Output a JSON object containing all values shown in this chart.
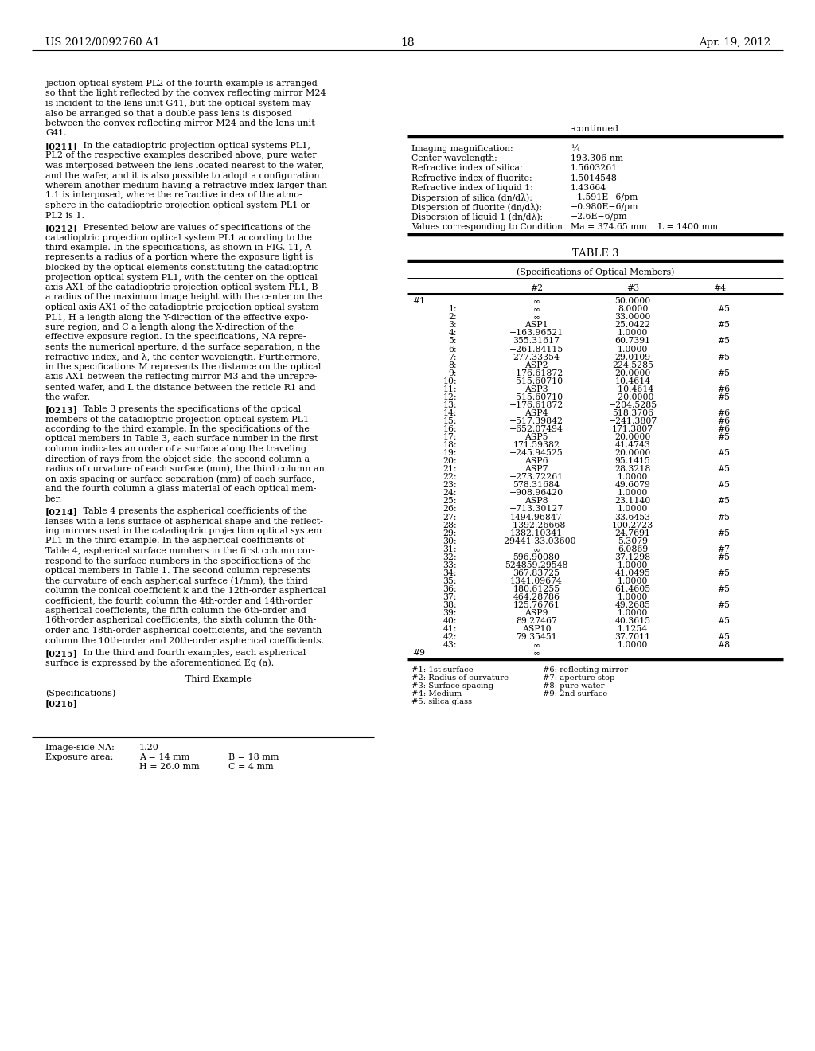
{
  "page_number": "18",
  "patent_number": "US 2012/0092760 A1",
  "date": "Apr. 19, 2012",
  "continued_rows": [
    [
      "Imaging magnification:",
      "¼"
    ],
    [
      "Center wavelength:",
      "193.306 nm"
    ],
    [
      "Refractive index of silica:",
      "1.5603261"
    ],
    [
      "Refractive index of fluorite:",
      "1.5014548"
    ],
    [
      "Refractive index of liquid 1:",
      "1.43664"
    ],
    [
      "Dispersion of silica (dn/dλ):",
      "−1.591E−6/pm"
    ],
    [
      "Dispersion of fluorite (dn/dλ):",
      "−0.980E−6/pm"
    ],
    [
      "Dispersion of liquid 1 (dn/dλ):",
      "−2.6E−6/pm"
    ],
    [
      "Values corresponding to Condition",
      "Ma = 374.65 mm    L = 1400 mm"
    ]
  ],
  "table3_rows": [
    [
      "#1",
      "∞",
      "50.0000",
      ""
    ],
    [
      "1:",
      "∞",
      "8.0000",
      "#5"
    ],
    [
      "2:",
      "∞",
      "33.0000",
      ""
    ],
    [
      "3:",
      "ASP1",
      "25.0422",
      "#5"
    ],
    [
      "4:",
      "−163.96521",
      "1.0000",
      ""
    ],
    [
      "5:",
      "355.31617",
      "60.7391",
      "#5"
    ],
    [
      "6:",
      "−261.84115",
      "1.0000",
      ""
    ],
    [
      "7:",
      "277.33354",
      "29.0109",
      "#5"
    ],
    [
      "8:",
      "ASP2",
      "224.5285",
      ""
    ],
    [
      "9:",
      "−176.61872",
      "20.0000",
      "#5"
    ],
    [
      "10:",
      "−515.60710",
      "10.4614",
      ""
    ],
    [
      "11:",
      "ASP3",
      "−10.4614",
      "#6"
    ],
    [
      "12:",
      "−515.60710",
      "−20.0000",
      "#5"
    ],
    [
      "13:",
      "−176.61872",
      "−204.5285",
      ""
    ],
    [
      "14:",
      "ASP4",
      "518.3706",
      "#6"
    ],
    [
      "15:",
      "−517.39842",
      "−241.3807",
      "#6"
    ],
    [
      "16:",
      "−652.07494",
      "171.3807",
      "#6"
    ],
    [
      "17:",
      "ASP5",
      "20.0000",
      "#5"
    ],
    [
      "18:",
      "171.59382",
      "41.4743",
      ""
    ],
    [
      "19:",
      "−245.94525",
      "20.0000",
      "#5"
    ],
    [
      "20:",
      "ASP6",
      "95.1415",
      ""
    ],
    [
      "21:",
      "ASP7",
      "28.3218",
      "#5"
    ],
    [
      "22:",
      "−273.72261",
      "1.0000",
      ""
    ],
    [
      "23:",
      "578.31684",
      "49.6079",
      "#5"
    ],
    [
      "24:",
      "−908.96420",
      "1.0000",
      ""
    ],
    [
      "25:",
      "ASP8",
      "23.1140",
      "#5"
    ],
    [
      "26:",
      "−713.30127",
      "1.0000",
      ""
    ],
    [
      "27:",
      "1494.96847",
      "33.6453",
      "#5"
    ],
    [
      "28:",
      "−1392.26668",
      "100.2723",
      ""
    ],
    [
      "29:",
      "1382.10341",
      "24.7691",
      "#5"
    ],
    [
      "30:",
      "−29441 33.03600",
      "5.3079",
      ""
    ],
    [
      "31:",
      "∞",
      "6.0869",
      "#7"
    ],
    [
      "32:",
      "596.90080",
      "37.1298",
      "#5"
    ],
    [
      "33:",
      "524859.29548",
      "1.0000",
      ""
    ],
    [
      "34:",
      "367.83725",
      "41.0495",
      "#5"
    ],
    [
      "35:",
      "1341.09674",
      "1.0000",
      ""
    ],
    [
      "36:",
      "180.61255",
      "61.4605",
      "#5"
    ],
    [
      "37:",
      "464.28786",
      "1.0000",
      ""
    ],
    [
      "38:",
      "125.76761",
      "49.2685",
      "#5"
    ],
    [
      "39:",
      "ASP9",
      "1.0000",
      ""
    ],
    [
      "40:",
      "89.27467",
      "40.3615",
      "#5"
    ],
    [
      "41:",
      "ASP10",
      "1.1254",
      ""
    ],
    [
      "42:",
      "79.35451",
      "37.7011",
      "#5"
    ],
    [
      "43:",
      "∞",
      "1.0000",
      "#8"
    ],
    [
      "#9",
      "∞",
      "",
      ""
    ]
  ],
  "table3_footnotes": [
    "#1: 1st surface",
    "#2: Radius of curvature",
    "#3: Surface spacing",
    "#4: Medium",
    "#5: silica glass",
    "#6: reflecting mirror",
    "#7: aperture stop",
    "#8: pure water",
    "#9: 2nd surface"
  ]
}
